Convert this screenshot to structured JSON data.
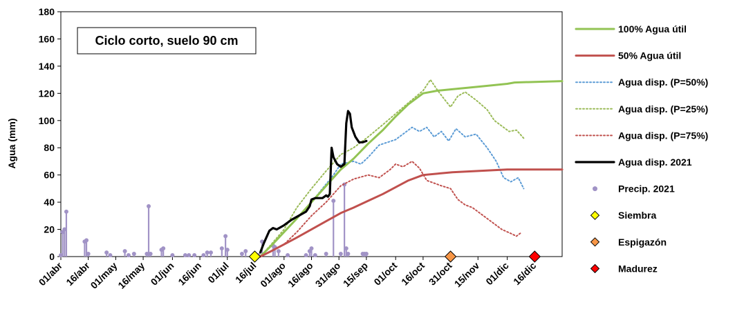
{
  "chart_data": {
    "type": "line",
    "title": "Ciclo corto, suelo 90 cm",
    "ylabel": "Agua (mm)",
    "xlabel": "",
    "ylim": [
      0,
      180
    ],
    "yticks": [
      0,
      20,
      40,
      60,
      80,
      100,
      120,
      140,
      160,
      180
    ],
    "x_type": "date",
    "xlim": [
      "2021-04-01",
      "2021-12-31"
    ],
    "xticks": [
      {
        "label": "01/abr",
        "date": "2021-04-01"
      },
      {
        "label": "16/abr",
        "date": "2021-04-16"
      },
      {
        "label": "01/may",
        "date": "2021-05-01"
      },
      {
        "label": "16/may",
        "date": "2021-05-16"
      },
      {
        "label": "01/jun",
        "date": "2021-06-01"
      },
      {
        "label": "16/jun",
        "date": "2021-06-16"
      },
      {
        "label": "01/jul",
        "date": "2021-07-01"
      },
      {
        "label": "16/jul",
        "date": "2021-07-16"
      },
      {
        "label": "01/ago",
        "date": "2021-08-01"
      },
      {
        "label": "16/ago",
        "date": "2021-08-16"
      },
      {
        "label": "31/ago",
        "date": "2021-08-31"
      },
      {
        "label": "15/sep",
        "date": "2021-09-15"
      },
      {
        "label": "01/oct",
        "date": "2021-10-01"
      },
      {
        "label": "16/oct",
        "date": "2021-10-16"
      },
      {
        "label": "31/oct",
        "date": "2021-10-31"
      },
      {
        "label": "15/nov",
        "date": "2021-11-15"
      },
      {
        "label": "01/dic",
        "date": "2021-12-01"
      },
      {
        "label": "16/dic",
        "date": "2021-12-16"
      }
    ],
    "grid": false,
    "legend_position": "right",
    "series": [
      {
        "name": "100% Agua útil",
        "style": "solid",
        "color": "#92c353",
        "points": [
          [
            "2021-07-19",
            0
          ],
          [
            "2021-07-25",
            8
          ],
          [
            "2021-08-01",
            18
          ],
          [
            "2021-08-08",
            28
          ],
          [
            "2021-08-16",
            40
          ],
          [
            "2021-08-24",
            52
          ],
          [
            "2021-09-01",
            64
          ],
          [
            "2021-09-08",
            72
          ],
          [
            "2021-09-16",
            83
          ],
          [
            "2021-09-24",
            93
          ],
          [
            "2021-10-01",
            103
          ],
          [
            "2021-10-08",
            112
          ],
          [
            "2021-10-16",
            120
          ],
          [
            "2021-10-24",
            122
          ],
          [
            "2021-11-01",
            123
          ],
          [
            "2021-11-16",
            125
          ],
          [
            "2021-12-01",
            127
          ],
          [
            "2021-12-05",
            128
          ],
          [
            "2021-12-31",
            129
          ]
        ]
      },
      {
        "name": "50% Agua útil",
        "style": "solid",
        "color": "#c0504d",
        "points": [
          [
            "2021-07-19",
            0
          ],
          [
            "2021-07-25",
            4
          ],
          [
            "2021-08-01",
            9
          ],
          [
            "2021-08-08",
            14
          ],
          [
            "2021-08-16",
            20
          ],
          [
            "2021-08-24",
            26
          ],
          [
            "2021-09-01",
            32
          ],
          [
            "2021-09-08",
            36
          ],
          [
            "2021-09-16",
            41
          ],
          [
            "2021-09-24",
            46
          ],
          [
            "2021-10-01",
            51
          ],
          [
            "2021-10-08",
            56
          ],
          [
            "2021-10-16",
            60
          ],
          [
            "2021-10-24",
            61
          ],
          [
            "2021-11-01",
            62
          ],
          [
            "2021-11-16",
            63
          ],
          [
            "2021-12-01",
            64
          ],
          [
            "2021-12-31",
            64
          ]
        ]
      },
      {
        "name": "Agua disp. (P=50%)",
        "style": "dotted",
        "color": "#5b9bd5",
        "points": [
          [
            "2021-07-19",
            0
          ],
          [
            "2021-07-25",
            8
          ],
          [
            "2021-08-01",
            18
          ],
          [
            "2021-08-08",
            28
          ],
          [
            "2021-08-16",
            40
          ],
          [
            "2021-08-22",
            50
          ],
          [
            "2021-08-28",
            60
          ],
          [
            "2021-09-01",
            68
          ],
          [
            "2021-09-08",
            70
          ],
          [
            "2021-09-12",
            68
          ],
          [
            "2021-09-16",
            73
          ],
          [
            "2021-09-22",
            82
          ],
          [
            "2021-10-01",
            86
          ],
          [
            "2021-10-05",
            90
          ],
          [
            "2021-10-10",
            95
          ],
          [
            "2021-10-14",
            92
          ],
          [
            "2021-10-18",
            95
          ],
          [
            "2021-10-22",
            88
          ],
          [
            "2021-10-26",
            92
          ],
          [
            "2021-10-30",
            85
          ],
          [
            "2021-11-03",
            94
          ],
          [
            "2021-11-08",
            88
          ],
          [
            "2021-11-14",
            90
          ],
          [
            "2021-11-20",
            80
          ],
          [
            "2021-11-25",
            70
          ],
          [
            "2021-11-29",
            58
          ],
          [
            "2021-12-03",
            55
          ],
          [
            "2021-12-07",
            58
          ],
          [
            "2021-12-10",
            50
          ]
        ]
      },
      {
        "name": "Agua disp. (P=25%)",
        "style": "dotted",
        "color": "#9bbb59",
        "points": [
          [
            "2021-07-19",
            0
          ],
          [
            "2021-07-25",
            9
          ],
          [
            "2021-08-01",
            20
          ],
          [
            "2021-08-08",
            36
          ],
          [
            "2021-08-16",
            50
          ],
          [
            "2021-08-24",
            63
          ],
          [
            "2021-09-01",
            75
          ],
          [
            "2021-09-08",
            80
          ],
          [
            "2021-09-16",
            88
          ],
          [
            "2021-09-24",
            97
          ],
          [
            "2021-10-01",
            105
          ],
          [
            "2021-10-08",
            113
          ],
          [
            "2021-10-16",
            122
          ],
          [
            "2021-10-20",
            130
          ],
          [
            "2021-10-24",
            122
          ],
          [
            "2021-10-28",
            115
          ],
          [
            "2021-10-31",
            110
          ],
          [
            "2021-11-04",
            118
          ],
          [
            "2021-11-08",
            121
          ],
          [
            "2021-11-14",
            115
          ],
          [
            "2021-11-20",
            108
          ],
          [
            "2021-11-24",
            100
          ],
          [
            "2021-11-28",
            96
          ],
          [
            "2021-12-02",
            92
          ],
          [
            "2021-12-06",
            93
          ],
          [
            "2021-12-10",
            87
          ]
        ]
      },
      {
        "name": "Agua disp. (P=75%)",
        "style": "dotted",
        "color": "#c0504d",
        "points": [
          [
            "2021-07-19",
            0
          ],
          [
            "2021-07-25",
            4
          ],
          [
            "2021-08-01",
            9
          ],
          [
            "2021-08-08",
            18
          ],
          [
            "2021-08-16",
            30
          ],
          [
            "2021-08-24",
            40
          ],
          [
            "2021-09-01",
            52
          ],
          [
            "2021-09-08",
            57
          ],
          [
            "2021-09-16",
            60
          ],
          [
            "2021-09-22",
            58
          ],
          [
            "2021-09-28",
            64
          ],
          [
            "2021-10-01",
            68
          ],
          [
            "2021-10-05",
            66
          ],
          [
            "2021-10-10",
            70
          ],
          [
            "2021-10-14",
            65
          ],
          [
            "2021-10-18",
            56
          ],
          [
            "2021-10-22",
            54
          ],
          [
            "2021-10-26",
            52
          ],
          [
            "2021-10-31",
            50
          ],
          [
            "2021-11-04",
            42
          ],
          [
            "2021-11-08",
            38
          ],
          [
            "2021-11-12",
            36
          ],
          [
            "2021-11-16",
            32
          ],
          [
            "2021-11-20",
            28
          ],
          [
            "2021-11-24",
            24
          ],
          [
            "2021-11-28",
            20
          ],
          [
            "2021-12-03",
            17
          ],
          [
            "2021-12-06",
            15
          ],
          [
            "2021-12-09",
            18
          ]
        ]
      },
      {
        "name": "Agua disp. 2021",
        "style": "solid",
        "color": "#000000",
        "points": [
          [
            "2021-07-19",
            3
          ],
          [
            "2021-07-21",
            10
          ],
          [
            "2021-07-24",
            19
          ],
          [
            "2021-07-26",
            21
          ],
          [
            "2021-07-28",
            20
          ],
          [
            "2021-08-01",
            23
          ],
          [
            "2021-08-05",
            27
          ],
          [
            "2021-08-09",
            30
          ],
          [
            "2021-08-13",
            33
          ],
          [
            "2021-08-15",
            37
          ],
          [
            "2021-08-16",
            42
          ],
          [
            "2021-08-18",
            43
          ],
          [
            "2021-08-22",
            43
          ],
          [
            "2021-08-24",
            45
          ],
          [
            "2021-08-25",
            44
          ],
          [
            "2021-08-26",
            46
          ],
          [
            "2021-08-27",
            80
          ],
          [
            "2021-08-28",
            73
          ],
          [
            "2021-08-30",
            68
          ],
          [
            "2021-09-01",
            66
          ],
          [
            "2021-09-03",
            68
          ],
          [
            "2021-09-04",
            98
          ],
          [
            "2021-09-05",
            107
          ],
          [
            "2021-09-06",
            105
          ],
          [
            "2021-09-07",
            95
          ],
          [
            "2021-09-09",
            88
          ],
          [
            "2021-09-11",
            84
          ],
          [
            "2021-09-13",
            84
          ],
          [
            "2021-09-15",
            85
          ]
        ]
      }
    ],
    "precipitation": {
      "name": "Precip. 2021",
      "color": "#a193c6",
      "points": [
        [
          "2021-04-01",
          1
        ],
        [
          "2021-04-02",
          18
        ],
        [
          "2021-04-03",
          20
        ],
        [
          "2021-04-04",
          33
        ],
        [
          "2021-04-14",
          11
        ],
        [
          "2021-04-15",
          12
        ],
        [
          "2021-04-16",
          2
        ],
        [
          "2021-04-26",
          3
        ],
        [
          "2021-04-28",
          1
        ],
        [
          "2021-05-06",
          4
        ],
        [
          "2021-05-08",
          1
        ],
        [
          "2021-05-11",
          2
        ],
        [
          "2021-05-18",
          2
        ],
        [
          "2021-05-19",
          37
        ],
        [
          "2021-05-20",
          2
        ],
        [
          "2021-05-26",
          5
        ],
        [
          "2021-05-27",
          6
        ],
        [
          "2021-06-01",
          1
        ],
        [
          "2021-06-08",
          1
        ],
        [
          "2021-06-10",
          1
        ],
        [
          "2021-06-13",
          1
        ],
        [
          "2021-06-18",
          1
        ],
        [
          "2021-06-20",
          3
        ],
        [
          "2021-06-22",
          3
        ],
        [
          "2021-06-28",
          6
        ],
        [
          "2021-06-30",
          15
        ],
        [
          "2021-07-01",
          5
        ],
        [
          "2021-07-09",
          2
        ],
        [
          "2021-07-11",
          4
        ],
        [
          "2021-07-18",
          1
        ],
        [
          "2021-07-20",
          11
        ],
        [
          "2021-07-26",
          8
        ],
        [
          "2021-07-27",
          7
        ],
        [
          "2021-07-29",
          4
        ],
        [
          "2021-08-03",
          1
        ],
        [
          "2021-08-13",
          1
        ],
        [
          "2021-08-15",
          4
        ],
        [
          "2021-08-16",
          6
        ],
        [
          "2021-08-18",
          1
        ],
        [
          "2021-08-24",
          2
        ],
        [
          "2021-08-28",
          41
        ],
        [
          "2021-09-01",
          2
        ],
        [
          "2021-09-03",
          53
        ],
        [
          "2021-09-04",
          6
        ],
        [
          "2021-09-05",
          2
        ],
        [
          "2021-09-13",
          2
        ],
        [
          "2021-09-14",
          2
        ],
        [
          "2021-09-15",
          2
        ]
      ]
    },
    "phenology": [
      {
        "name": "Siembra",
        "date": "2021-07-16",
        "y": 0,
        "color": "#ffff00"
      },
      {
        "name": "Espigazón",
        "date": "2021-10-31",
        "y": 0,
        "color": "#f79646"
      },
      {
        "name": "Madurez",
        "date": "2021-12-16",
        "y": 0,
        "color": "#ff0000"
      }
    ]
  }
}
